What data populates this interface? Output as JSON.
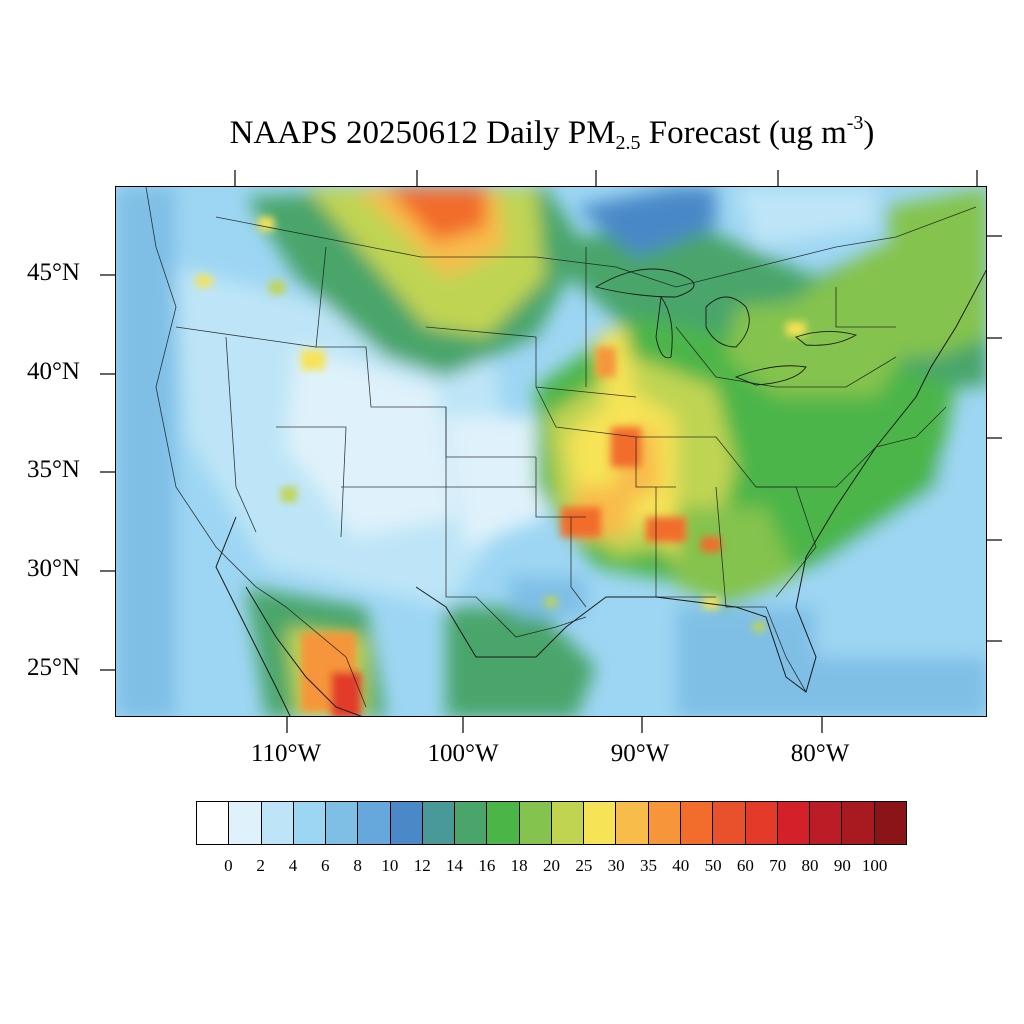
{
  "title": {
    "main": "NAAPS 20250612 Daily PM",
    "sub": "2.5",
    "after": " Forecast (ug m",
    "sup": "-3",
    "close": ")"
  },
  "lat_labels": [
    "45°N",
    "40°N",
    "35°N",
    "30°N",
    "25°N"
  ],
  "lon_labels": [
    "110°W",
    "100°W",
    "90°W",
    "80°W"
  ],
  "colorbar": {
    "colors": [
      "#ffffff",
      "#dff2fb",
      "#bde5f7",
      "#9dd6f3",
      "#7fbfe6",
      "#66a8dc",
      "#4a88c8",
      "#4a9999",
      "#4aa56b",
      "#4bb548",
      "#84c34e",
      "#c0d452",
      "#f6e356",
      "#f8bc4b",
      "#f6953a",
      "#f26c2b",
      "#e8512c",
      "#e33a2a",
      "#d42029",
      "#bc1c25",
      "#a81a1f",
      "#8b1418"
    ],
    "labels": [
      "0",
      "2",
      "4",
      "6",
      "8",
      "10",
      "12",
      "14",
      "16",
      "18",
      "20",
      "25",
      "30",
      "35",
      "40",
      "50",
      "60",
      "70",
      "80",
      "90",
      "100"
    ]
  },
  "map_colors": {
    "ocean": "#7fbfe6",
    "land_clean": "#bde5f7",
    "very_clean": "#dff2fb"
  }
}
